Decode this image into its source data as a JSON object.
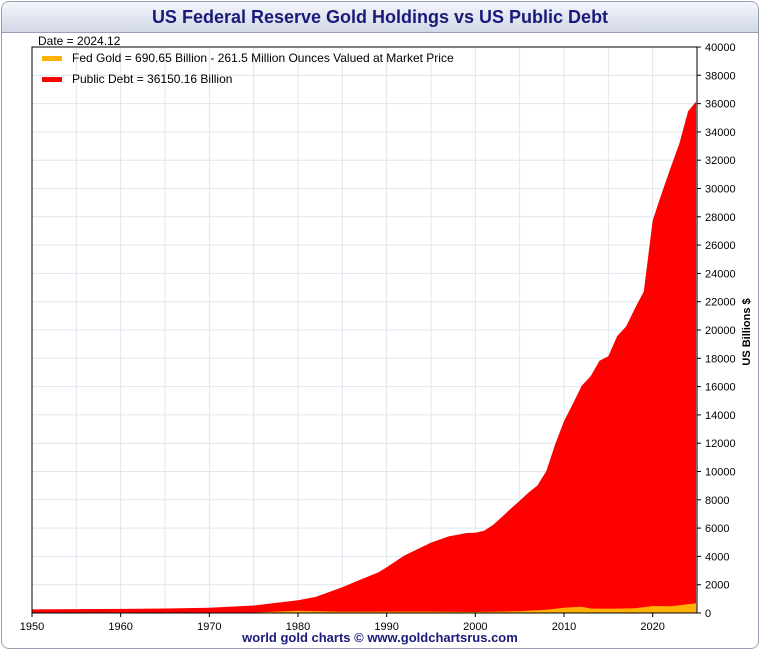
{
  "title": "US Federal Reserve Gold Holdings vs US Public Debt",
  "footer": "world gold charts © www.goldchartsrus.com",
  "date_label": "Date = 2024.12",
  "colors": {
    "gold": "#FFB000",
    "debt": "#FF0000",
    "title": "#1a1a7a",
    "grid": "#dfe6ee"
  },
  "chart_data": {
    "type": "area",
    "title": "US Federal Reserve Gold Holdings vs US Public Debt",
    "ylabel": "US Billions $",
    "xlim": [
      1950,
      2025
    ],
    "ylim": [
      0,
      40000
    ],
    "yaxis_side": "right",
    "grid": true,
    "x_ticks": [
      1950,
      1960,
      1970,
      1980,
      1990,
      2000,
      2010,
      2020
    ],
    "y_ticks": [
      0,
      2000,
      4000,
      6000,
      8000,
      10000,
      12000,
      14000,
      16000,
      18000,
      20000,
      22000,
      24000,
      26000,
      28000,
      30000,
      32000,
      34000,
      36000,
      38000,
      40000
    ],
    "legend_position": "top-left",
    "series": [
      {
        "name": "Public Debt = 36150.16 Billion",
        "color": "#FF0000",
        "x": [
          1950,
          1955,
          1960,
          1965,
          1970,
          1975,
          1980,
          1982,
          1985,
          1987,
          1989,
          1990,
          1992,
          1995,
          1997,
          1998,
          1999,
          2000,
          2001,
          2002,
          2003,
          2004,
          2005,
          2006,
          2007,
          2008,
          2009,
          2010,
          2011,
          2012,
          2013,
          2014,
          2015,
          2016,
          2017,
          2018,
          2019,
          2020,
          2021,
          2022,
          2023,
          2024,
          2024.9
        ],
        "y": [
          257,
          274,
          290,
          317,
          371,
          533,
          908,
          1140,
          1817,
          2350,
          2857,
          3233,
          4065,
          4974,
          5413,
          5526,
          5656,
          5674,
          5807,
          6228,
          6783,
          7379,
          7933,
          8507,
          9008,
          10025,
          11910,
          13562,
          14790,
          16066,
          16738,
          17824,
          18151,
          19573,
          20245,
          21516,
          22719,
          27748,
          29617,
          31420,
          33167,
          35464,
          36150
        ]
      },
      {
        "name": "Fed Gold = 690.65 Billion - 261.5 Million Ounces Valued at Market Price",
        "color": "#FFB000",
        "x": [
          1950,
          1960,
          1970,
          1975,
          1980,
          1985,
          1990,
          1995,
          2000,
          2005,
          2008,
          2010,
          2011,
          2012,
          2013,
          2015,
          2018,
          2020,
          2022,
          2024.9
        ],
        "y": [
          22,
          18,
          11,
          36,
          157,
          85,
          100,
          100,
          72,
          134,
          227,
          368,
          415,
          438,
          315,
          305,
          335,
          494,
          476,
          690
        ]
      }
    ]
  }
}
